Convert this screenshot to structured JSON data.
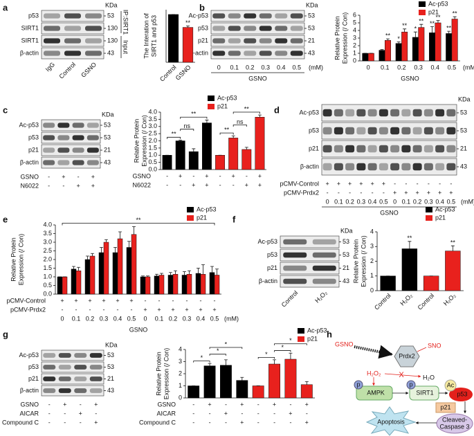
{
  "panel_labels": [
    "a",
    "b",
    "c",
    "d",
    "e",
    "f",
    "g",
    "h"
  ],
  "blots": [
    {
      "rows": [
        "p53",
        "SIRT1",
        "SIRT1",
        "β-actin"
      ],
      "kda_header": "KDa",
      "kda": [
        53,
        130,
        130,
        43
      ],
      "lanes": [
        "IgG",
        "Control",
        "GSNO"
      ],
      "rotate_lanes": true,
      "groups": [
        {
          "label": "IP:SIRT1",
          "rows": [
            0,
            1
          ]
        },
        {
          "label": "Input",
          "rows": [
            2,
            3
          ]
        }
      ]
    },
    {
      "rows": [
        "Ac-p53",
        "p53",
        "p21",
        "β-actin"
      ],
      "kda_header": "KDa",
      "kda": [
        53,
        53,
        21,
        43
      ],
      "lanes": [
        0,
        0.1,
        0.2,
        0.3,
        0.4,
        0.5
      ],
      "unit": "(mM)",
      "xlabel": "GSNO"
    },
    {
      "rows": [
        "Ac-p53",
        "p53",
        "p21",
        "β-actin"
      ],
      "kda_header": "KDa",
      "kda": [
        53,
        53,
        21,
        43
      ],
      "conditions": [
        {
          "name": "GSNO",
          "signs": [
            "-",
            "+",
            "-",
            "+"
          ]
        },
        {
          "name": "N6022",
          "signs": [
            "-",
            "-",
            "+",
            "+"
          ]
        }
      ]
    },
    {
      "rows": [
        "Ac-p53",
        "p53",
        "p21",
        "β-actin"
      ],
      "kda_header": "KDa",
      "kda": [
        53,
        53,
        21,
        43
      ],
      "conditions": [
        {
          "name": "pCMV-Control",
          "signs": [
            "+",
            "+",
            "+",
            "+",
            "+",
            "+",
            "-",
            "-",
            "-",
            "-",
            "-",
            "-"
          ]
        },
        {
          "name": "pCMV-Prdx2",
          "signs": [
            "-",
            "-",
            "-",
            "-",
            "-",
            "-",
            "+",
            "+",
            "+",
            "+",
            "+",
            "+"
          ]
        }
      ],
      "lanes": [
        0,
        0.1,
        0.2,
        0.3,
        0.4,
        0.5,
        0,
        0.1,
        0.2,
        0.3,
        0.4,
        0.5
      ],
      "unit": "(mM)",
      "xlabel": "GSNO"
    },
    {
      "rows": [
        "Ac-p53",
        "p53",
        "p21",
        "β-actin"
      ],
      "kda_header": "KDa",
      "kda": [
        53,
        53,
        21,
        43
      ],
      "lanes": [
        "Control",
        "H₂O₂"
      ],
      "rotate_lanes": true
    },
    {
      "rows": [
        "Ac-p53",
        "p53",
        "p21",
        "β-actin"
      ],
      "kda_header": "KDa",
      "kda": [
        53,
        53,
        21,
        43
      ],
      "conditions": [
        {
          "name": "GSNO",
          "signs": [
            "-",
            "+",
            "-",
            "+"
          ]
        },
        {
          "name": "AICAR",
          "signs": [
            "-",
            "-",
            "+",
            "-"
          ]
        },
        {
          "name": "Compound C",
          "signs": [
            "-",
            "-",
            "-",
            "+"
          ]
        }
      ]
    }
  ],
  "chart_data": [
    {
      "type": "bar",
      "ylabel": [
        "The Interation of",
        "SIRT1 and p53"
      ],
      "categories": [
        "Control",
        "GSNO"
      ],
      "rotate_labels": true,
      "ylim": [
        0,
        1.1
      ],
      "series": [
        {
          "color": "#000000",
          "values": [
            1,
            null
          ],
          "errors": [
            0,
            null
          ]
        },
        {
          "color": "#e8211d",
          "values": [
            null,
            0.73
          ],
          "errors": [
            null,
            0.03
          ],
          "significance": [
            null,
            "**"
          ]
        }
      ]
    },
    {
      "type": "bar",
      "ylabel": [
        "Relative Protein",
        "Expression (/ Con)"
      ],
      "categories": [
        0,
        0.1,
        0.2,
        0.3,
        0.4,
        0.5
      ],
      "unit": "(mM)",
      "xlabel": "GSNO",
      "ylim": [
        0,
        6
      ],
      "yticks": [
        0,
        1,
        2,
        3,
        4,
        5,
        6
      ],
      "series": [
        {
          "name": "Ac-p53",
          "color": "#000000",
          "values": [
            1,
            1.4,
            2.3,
            3.1,
            3.7,
            3.6
          ],
          "errors": [
            0,
            0.1,
            0.2,
            0.7,
            0.8,
            0.3
          ],
          "significance": [
            null,
            null,
            "*",
            "*",
            "**",
            "**"
          ]
        },
        {
          "name": "p21",
          "color": "#e8211d",
          "values": [
            1,
            2.7,
            3.8,
            4.4,
            5.0,
            5.5
          ],
          "errors": [
            0,
            0.2,
            0.4,
            0.4,
            0.3,
            0.3
          ],
          "significance": [
            null,
            "**",
            "**",
            "**",
            "**",
            "**"
          ]
        }
      ]
    },
    {
      "type": "bar",
      "ylabel": [
        "Relative Protein",
        "Expression (/ Con)"
      ],
      "ylim": [
        0,
        4
      ],
      "yticks": [
        {
          "value": 0,
          "label": "0.0"
        },
        0.5,
        {
          "value": 1,
          "label": "1.0"
        },
        1.5,
        {
          "value": 2,
          "label": "2.0"
        },
        2.5,
        {
          "value": 3,
          "label": "3.0"
        },
        3.5,
        {
          "value": 4,
          "label": "4.0"
        }
      ],
      "conditions": [
        {
          "name": "GSNO",
          "signs": [
            "-",
            "+",
            "-",
            "+",
            "-",
            "+",
            "-",
            "+"
          ]
        },
        {
          "name": "N6022",
          "signs": [
            "-",
            "-",
            "+",
            "+",
            "-",
            "-",
            "+",
            "+"
          ]
        }
      ],
      "series": [
        {
          "name": "Ac-p53",
          "color": "#000000",
          "values": [
            1.0,
            2.0,
            1.25,
            3.25,
            null,
            null,
            null,
            null
          ],
          "errors": [
            0,
            0.05,
            0.2,
            0.2,
            null,
            null,
            null,
            null
          ]
        },
        {
          "name": "p21",
          "color": "#e8211d",
          "values": [
            null,
            null,
            null,
            null,
            1.0,
            2.2,
            1.4,
            3.65
          ],
          "errors": [
            null,
            null,
            null,
            null,
            0,
            0.15,
            0.15,
            0.15
          ]
        }
      ],
      "comparisons": [
        {
          "label": "**",
          "from": 0,
          "to": 1
        },
        {
          "label": "ns",
          "from": 1,
          "to": 2
        },
        {
          "label": "**",
          "from": 1,
          "to": 3
        },
        {
          "label": "**",
          "from": 4,
          "to": 5
        },
        {
          "label": "ns",
          "from": 5,
          "to": 6
        },
        {
          "label": "**",
          "from": 5,
          "to": 7
        }
      ]
    },
    {
      "type": "bar",
      "ylabel": [
        "Relative Protein",
        "Expression (/ Con)"
      ],
      "ylim": [
        0,
        4
      ],
      "yticks": [
        {
          "value": 0,
          "label": "0.0"
        },
        0.5,
        {
          "value": 1,
          "label": "1.0"
        },
        1.5,
        {
          "value": 2,
          "label": "2.0"
        },
        2.5,
        {
          "value": 3,
          "label": "3.0"
        },
        3.5,
        {
          "value": 4,
          "label": "4.0"
        }
      ],
      "conditions": [
        {
          "name": "pCMV-Control",
          "signs": [
            "+",
            "+",
            "+",
            "+",
            "+",
            "+",
            "-",
            "-",
            "-",
            "-",
            "-",
            "-"
          ]
        },
        {
          "name": "pCMV-Prdx2",
          "signs": [
            "-",
            "-",
            "-",
            "-",
            "-",
            "-",
            "+",
            "+",
            "+",
            "+",
            "+",
            "+"
          ]
        }
      ],
      "categories": [
        0,
        0.1,
        0.2,
        0.3,
        0.4,
        0.5,
        0,
        0.1,
        0.2,
        0.3,
        0.4,
        0.5
      ],
      "unit": "(mM)",
      "xlabel": "GSNO",
      "series": [
        {
          "name": "Ac-p53",
          "color": "#000000",
          "values": [
            1.0,
            1.45,
            2.0,
            2.4,
            2.4,
            2.7,
            1.0,
            1.05,
            1.1,
            1.1,
            1.2,
            1.25
          ],
          "errors": [
            0,
            0.15,
            0.2,
            0.3,
            0.3,
            0.35,
            0.05,
            0.1,
            0.15,
            0.2,
            0.3,
            0.35
          ]
        },
        {
          "name": "p21",
          "color": "#e8211d",
          "values": [
            1.0,
            1.35,
            2.2,
            3.0,
            3.2,
            3.45,
            1.0,
            1.1,
            1.15,
            1.15,
            1.15,
            1.1
          ],
          "errors": [
            0,
            0.2,
            0.15,
            0.15,
            0.4,
            0.45,
            0.05,
            0.1,
            0.2,
            0.2,
            0.55,
            0.35
          ]
        }
      ],
      "comparisons": [
        {
          "label": "**",
          "from": 0,
          "to": 11
        }
      ]
    },
    {
      "type": "bar",
      "ylabel": [
        "Relative Protein",
        "Expression (/ Con)"
      ],
      "categories": [
        "Control",
        "H₂O₂",
        "Control",
        "H₂O₂"
      ],
      "rotate_labels": true,
      "ylim": [
        0,
        4
      ],
      "yticks": [
        0,
        1,
        2,
        3,
        4
      ],
      "series": [
        {
          "name": "Ac-p53",
          "color": "#000000",
          "values": [
            1,
            2.85,
            null,
            null
          ],
          "errors": [
            0,
            0.5,
            null,
            null
          ],
          "significance": [
            null,
            "**",
            null,
            null
          ]
        },
        {
          "name": "p21",
          "color": "#e8211d",
          "values": [
            null,
            null,
            1,
            2.7
          ],
          "errors": [
            null,
            null,
            0,
            0.35
          ],
          "significance": [
            null,
            null,
            null,
            "**"
          ]
        }
      ]
    },
    {
      "type": "bar",
      "ylabel": [
        "Relative Protein",
        "Expression (/ Con)"
      ],
      "ylim": [
        0,
        4
      ],
      "yticks": [
        0,
        1,
        2,
        3,
        4
      ],
      "conditions": [
        {
          "name": "GSNO",
          "signs": [
            "-",
            "+",
            "-",
            "+",
            "-",
            "+",
            "-",
            "+"
          ]
        },
        {
          "name": "AICAR",
          "signs": [
            "-",
            "-",
            "+",
            "-",
            "-",
            "-",
            "+",
            "-"
          ]
        },
        {
          "name": "Compound C",
          "signs": [
            "-",
            "-",
            "-",
            "+",
            "-",
            "-",
            "-",
            "+"
          ]
        }
      ],
      "series": [
        {
          "name": "Ac-p53",
          "color": "#000000",
          "values": [
            1,
            2.65,
            2.7,
            1.45,
            null,
            null,
            null,
            null
          ],
          "errors": [
            0,
            0.2,
            0.45,
            0.25,
            null,
            null,
            null,
            null
          ]
        },
        {
          "name": "p21",
          "color": "#e8211d",
          "values": [
            null,
            null,
            null,
            null,
            1,
            2.8,
            3.2,
            1.1
          ],
          "errors": [
            null,
            null,
            null,
            null,
            0,
            0.35,
            0.5,
            0.25
          ]
        }
      ],
      "comparisons": [
        {
          "label": "*",
          "from": 0,
          "to": 1
        },
        {
          "label": "*",
          "from": 1,
          "to": 2
        },
        {
          "label": "*",
          "from": 1,
          "to": 3
        },
        {
          "label": "*",
          "from": 4,
          "to": 5
        },
        {
          "label": "*",
          "from": 5,
          "to": 6
        },
        {
          "label": "*",
          "from": 5,
          "to": 7
        }
      ]
    }
  ],
  "diagram": {
    "gsno": "GSNO",
    "sno": "SNO",
    "prdx2": "Prdx2",
    "h2o2": "H₂O₂",
    "blocked": "X",
    "h2o": "H₂O",
    "ampk": "AMPK",
    "phospho": [
      "p",
      "p"
    ],
    "sirt1": "SIRT1",
    "acetyl": "Ac",
    "p53": "p53",
    "p21": "p21",
    "apoptosis": "Apoptosis",
    "caspase": [
      "Cleaved-",
      "Caspase 3"
    ]
  }
}
